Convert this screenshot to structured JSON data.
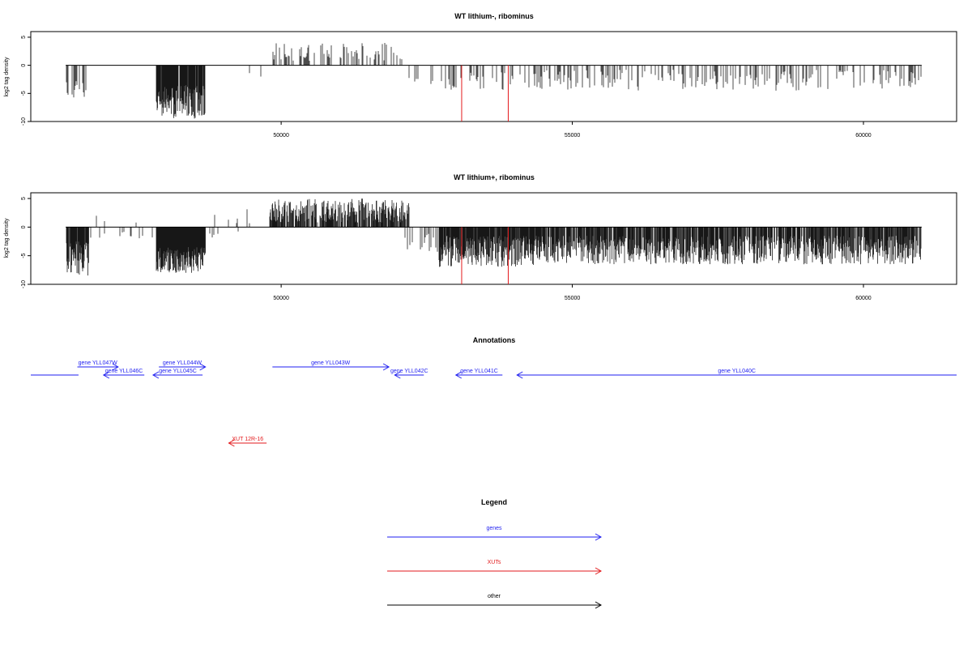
{
  "colors": {
    "signal": "#000000",
    "marker": "#e31a1c",
    "gene": "#1f1ff0",
    "xut": "#e31a1c",
    "other": "#000000"
  },
  "chart_data": [
    {
      "type": "bar",
      "title": "WT lithium-, ribominus",
      "ylabel": "log2 tag density",
      "xlim": [
        45700,
        61600
      ],
      "ylim": [
        -10,
        6
      ],
      "xticks": [
        50000,
        55000,
        60000
      ],
      "xtick_labels": [
        "50000",
        "55000",
        "60000"
      ],
      "yticks": [
        5,
        0,
        -5,
        -10
      ],
      "ytick_labels": [
        "5",
        "0",
        "-5",
        "-10"
      ],
      "baseline_range": [
        46300,
        61000
      ],
      "markers_x": [
        53100,
        53900
      ],
      "regions": [
        {
          "start": 46300,
          "end": 46650,
          "depth_min": 2.5,
          "depth_max": 6.0,
          "density": 0.55,
          "sign": -1
        },
        {
          "start": 47850,
          "end": 48700,
          "depth_min": 3.5,
          "depth_max": 9.5,
          "density": 0.95,
          "sign": -1
        },
        {
          "start": 49300,
          "end": 49800,
          "depth_min": 1.0,
          "depth_max": 2.0,
          "density": 0.03,
          "sign": -1
        },
        {
          "start": 49850,
          "end": 52100,
          "depth_min": 0.8,
          "depth_max": 4.0,
          "density": 0.3,
          "sign": 1
        },
        {
          "start": 52100,
          "end": 52800,
          "depth_min": 1.0,
          "depth_max": 3.5,
          "density": 0.05,
          "sign": -1
        },
        {
          "start": 52800,
          "end": 61000,
          "depth_min": 0.8,
          "depth_max": 4.5,
          "density": 0.32,
          "sign": -1
        }
      ]
    },
    {
      "type": "bar",
      "title": "WT lithium+, ribominus",
      "ylabel": "log2 tag density",
      "xlim": [
        45700,
        61600
      ],
      "ylim": [
        -10,
        6
      ],
      "xticks": [
        50000,
        55000,
        60000
      ],
      "xtick_labels": [
        "50000",
        "55000",
        "60000"
      ],
      "yticks": [
        5,
        0,
        -5,
        -10
      ],
      "ytick_labels": [
        "5",
        "0",
        "-5",
        "-10"
      ],
      "baseline_range": [
        46300,
        61000
      ],
      "markers_x": [
        53100,
        53900
      ],
      "regions": [
        {
          "start": 46300,
          "end": 46700,
          "depth_min": 2.5,
          "depth_max": 8.5,
          "density": 0.85,
          "sign": -1
        },
        {
          "start": 46700,
          "end": 47800,
          "depth_min": 0.5,
          "depth_max": 2.0,
          "density": 0.12,
          "sign": -1
        },
        {
          "start": 46800,
          "end": 47700,
          "depth_min": 0.5,
          "depth_max": 2.0,
          "density": 0.04,
          "sign": 1
        },
        {
          "start": 47850,
          "end": 48700,
          "depth_min": 3.5,
          "depth_max": 8.0,
          "density": 1.0,
          "sign": -1
        },
        {
          "start": 48700,
          "end": 49800,
          "depth_min": 0.5,
          "depth_max": 2.0,
          "density": 0.08,
          "sign": -1
        },
        {
          "start": 48800,
          "end": 49700,
          "depth_min": 0.5,
          "depth_max": 3.3,
          "density": 0.06,
          "sign": 1
        },
        {
          "start": 49800,
          "end": 52200,
          "depth_min": 0.8,
          "depth_max": 5.0,
          "density": 0.75,
          "sign": 1
        },
        {
          "start": 52100,
          "end": 52700,
          "depth_min": 1.0,
          "depth_max": 5.0,
          "density": 0.3,
          "sign": -1
        },
        {
          "start": 52700,
          "end": 54500,
          "depth_min": 1.5,
          "depth_max": 7.0,
          "density": 0.9,
          "sign": -1
        },
        {
          "start": 54500,
          "end": 61000,
          "depth_min": 1.5,
          "depth_max": 6.5,
          "density": 0.78,
          "sign": -1
        }
      ]
    }
  ],
  "annotations": {
    "title": "Annotations",
    "xlim": [
      45700,
      61600
    ],
    "features": [
      {
        "label": "",
        "kind": "gene",
        "start": 45700,
        "end": 46520,
        "strand": "none",
        "row": 2
      },
      {
        "label": "gene YLL047W",
        "kind": "gene",
        "start": 46500,
        "end": 47200,
        "strand": "+",
        "row": 1
      },
      {
        "label": "gene YLL046C",
        "kind": "gene",
        "start": 46950,
        "end": 47650,
        "strand": "-",
        "row": 2
      },
      {
        "label": "gene YLL044W",
        "kind": "gene",
        "start": 47900,
        "end": 48700,
        "strand": "+",
        "row": 1
      },
      {
        "label": "gene YLL045C",
        "kind": "gene",
        "start": 47800,
        "end": 48650,
        "strand": "-",
        "row": 2
      },
      {
        "label": "gene YLL043W",
        "kind": "gene",
        "start": 49850,
        "end": 51850,
        "strand": "+",
        "row": 1
      },
      {
        "label": "gene YLL042C",
        "kind": "gene",
        "start": 51950,
        "end": 52450,
        "strand": "-",
        "row": 2
      },
      {
        "label": "gene YLL041C",
        "kind": "gene",
        "start": 53000,
        "end": 53800,
        "strand": "-",
        "row": 2
      },
      {
        "label": "gene YLL040C",
        "kind": "gene",
        "start": 54050,
        "end": 61600,
        "strand": "-",
        "row": 2
      },
      {
        "label": "XUT 12R-16",
        "kind": "xut",
        "start": 49100,
        "end": 49750,
        "strand": "-",
        "row": 3
      }
    ]
  },
  "legend": {
    "title": "Legend",
    "items": [
      {
        "label": "genes",
        "kind": "gene"
      },
      {
        "label": "XUTs",
        "kind": "xut"
      },
      {
        "label": "other",
        "kind": "other"
      }
    ]
  }
}
